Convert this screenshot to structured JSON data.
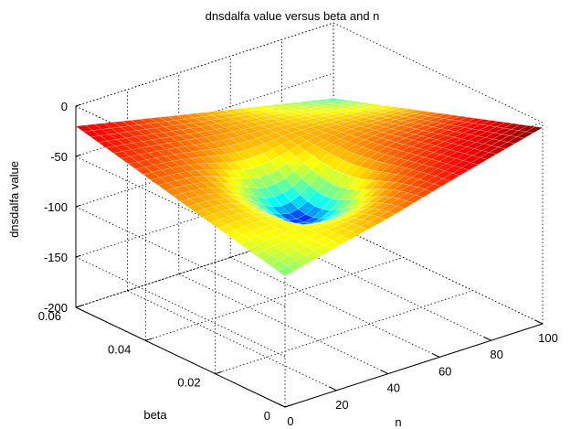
{
  "chart_data": {
    "type": "surface",
    "title": "dnsdalfa value versus beta and n",
    "xlabel": "n",
    "ylabel": "beta",
    "zlabel": "dnsdalfa value",
    "xlim": [
      0,
      100
    ],
    "ylim": [
      0,
      0.06
    ],
    "zlim": [
      -200,
      0
    ],
    "x_ticks": [
      "0",
      "20",
      "40",
      "60",
      "80",
      "100"
    ],
    "y_ticks": [
      "0",
      "0.02",
      "0.04",
      "0.06"
    ],
    "z_ticks": [
      "0",
      "-50",
      "-100",
      "-150",
      "-200"
    ],
    "grid": true,
    "colormap": "jet",
    "surface_corners": [
      {
        "n": 0,
        "beta": 0,
        "value": -70
      },
      {
        "n": 100,
        "beta": 0,
        "value": -5
      },
      {
        "n": 0,
        "beta": 0.06,
        "value": -20
      },
      {
        "n": 100,
        "beta": 0.06,
        "value": -75
      }
    ],
    "surface_minimum": {
      "n": 40,
      "beta": 0.025,
      "value": -80
    }
  }
}
